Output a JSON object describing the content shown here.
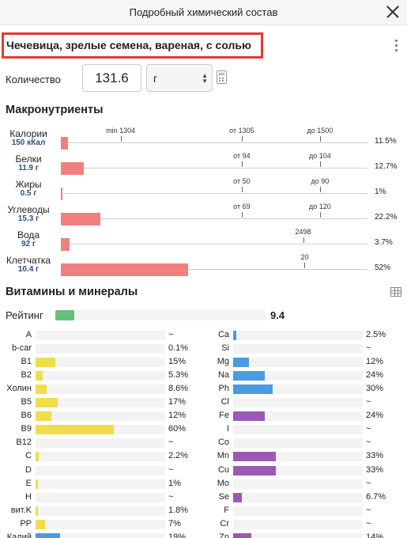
{
  "window": {
    "title": "Подробный химический состав"
  },
  "food": {
    "name": "Чечевица, зрелые семена, вареная, с солью"
  },
  "quantity": {
    "label": "Количество",
    "value": "131.6",
    "unit": "г"
  },
  "macros": {
    "title": "Макронутриенты",
    "items": [
      {
        "name": "Калории",
        "amount": "150 кКал",
        "percent": "11.5%",
        "fill_fraction": 0.022,
        "marks": [
          {
            "label": "min 1304",
            "position": 0.195
          },
          {
            "label": "от 1305",
            "position": 0.59
          },
          {
            "label": "до 1500",
            "position": 0.845
          }
        ]
      },
      {
        "name": "Белки",
        "amount": "11.9 г",
        "percent": "12.7%",
        "fill_fraction": 0.075,
        "marks": [
          {
            "label": "от 94",
            "position": 0.59
          },
          {
            "label": "до 104",
            "position": 0.845
          }
        ]
      },
      {
        "name": "Жиры",
        "amount": "0.5 г",
        "percent": "1%",
        "fill_fraction": 0.004,
        "marks": [
          {
            "label": "от 50",
            "position": 0.59
          },
          {
            "label": "до 90",
            "position": 0.845
          }
        ]
      },
      {
        "name": "Углеводы",
        "amount": "15.3 г",
        "percent": "22.2%",
        "fill_fraction": 0.13,
        "marks": [
          {
            "label": "от 69",
            "position": 0.59
          },
          {
            "label": "до 120",
            "position": 0.845
          }
        ]
      },
      {
        "name": "Вода",
        "amount": "92 г",
        "percent": "3.7%",
        "fill_fraction": 0.028,
        "marks": [
          {
            "label": "2498",
            "position": 0.79
          }
        ]
      },
      {
        "name": "Клетчатка",
        "amount": "10.4 г",
        "percent": "52%",
        "fill_fraction": 0.415,
        "marks": [
          {
            "label": "20",
            "position": 0.795
          }
        ]
      }
    ]
  },
  "vitamins": {
    "title": "Витамины и минералы",
    "rating": {
      "label": "Рейтинг",
      "value": "9.4",
      "fill_fraction": 0.09,
      "color": "#66c07a"
    },
    "colors": {
      "vitamin": "#f1dd4a",
      "major_mineral": "#4b9be0",
      "trace_mineral": "#9b59b6"
    },
    "left": [
      {
        "name": "A",
        "value": "~",
        "fill_fraction": 0,
        "color": "#f1dd4a"
      },
      {
        "name": "b-car",
        "value": "0.1%",
        "fill_fraction": 0,
        "color": "#f1dd4a"
      },
      {
        "name": "B1",
        "value": "15%",
        "fill_fraction": 0.15,
        "color": "#f1dd4a"
      },
      {
        "name": "B2",
        "value": "5.3%",
        "fill_fraction": 0.053,
        "color": "#f1dd4a"
      },
      {
        "name": "Холин",
        "value": "8.6%",
        "fill_fraction": 0.086,
        "color": "#f1dd4a"
      },
      {
        "name": "B5",
        "value": "17%",
        "fill_fraction": 0.17,
        "color": "#f1dd4a"
      },
      {
        "name": "B6",
        "value": "12%",
        "fill_fraction": 0.12,
        "color": "#f1dd4a"
      },
      {
        "name": "B9",
        "value": "60%",
        "fill_fraction": 0.6,
        "color": "#f1dd4a"
      },
      {
        "name": "B12",
        "value": "~",
        "fill_fraction": 0,
        "color": "#f1dd4a"
      },
      {
        "name": "C",
        "value": "2.2%",
        "fill_fraction": 0.022,
        "color": "#f1dd4a"
      },
      {
        "name": "D",
        "value": "~",
        "fill_fraction": 0,
        "color": "#f1dd4a"
      },
      {
        "name": "E",
        "value": "1%",
        "fill_fraction": 0.01,
        "color": "#f1dd4a"
      },
      {
        "name": "H",
        "value": "~",
        "fill_fraction": 0,
        "color": "#f1dd4a"
      },
      {
        "name": "вит.K",
        "value": "1.8%",
        "fill_fraction": 0.018,
        "color": "#f1dd4a"
      },
      {
        "name": "PP",
        "value": "7%",
        "fill_fraction": 0.07,
        "color": "#f1dd4a"
      },
      {
        "name": "Калий",
        "value": "19%",
        "fill_fraction": 0.19,
        "color": "#4b9be0"
      }
    ],
    "right": [
      {
        "name": "Ca",
        "value": "2.5%",
        "fill_fraction": 0.025,
        "color": "#4b9be0"
      },
      {
        "name": "Si",
        "value": "~",
        "fill_fraction": 0,
        "color": "#4b9be0"
      },
      {
        "name": "Mg",
        "value": "12%",
        "fill_fraction": 0.12,
        "color": "#4b9be0"
      },
      {
        "name": "Na",
        "value": "24%",
        "fill_fraction": 0.24,
        "color": "#4b9be0"
      },
      {
        "name": "Ph",
        "value": "30%",
        "fill_fraction": 0.3,
        "color": "#4b9be0"
      },
      {
        "name": "Cl",
        "value": "~",
        "fill_fraction": 0,
        "color": "#4b9be0"
      },
      {
        "name": "Fe",
        "value": "24%",
        "fill_fraction": 0.24,
        "color": "#9b59b6"
      },
      {
        "name": "I",
        "value": "~",
        "fill_fraction": 0,
        "color": "#9b59b6"
      },
      {
        "name": "Co",
        "value": "~",
        "fill_fraction": 0,
        "color": "#9b59b6"
      },
      {
        "name": "Mn",
        "value": "33%",
        "fill_fraction": 0.33,
        "color": "#9b59b6"
      },
      {
        "name": "Cu",
        "value": "33%",
        "fill_fraction": 0.33,
        "color": "#9b59b6"
      },
      {
        "name": "Mo",
        "value": "~",
        "fill_fraction": 0,
        "color": "#9b59b6"
      },
      {
        "name": "Se",
        "value": "6.7%",
        "fill_fraction": 0.067,
        "color": "#9b59b6"
      },
      {
        "name": "F",
        "value": "~",
        "fill_fraction": 0,
        "color": "#9b59b6"
      },
      {
        "name": "Cr",
        "value": "~",
        "fill_fraction": 0,
        "color": "#9b59b6"
      },
      {
        "name": "Zn",
        "value": "14%",
        "fill_fraction": 0.14,
        "color": "#9b59b6"
      }
    ]
  }
}
